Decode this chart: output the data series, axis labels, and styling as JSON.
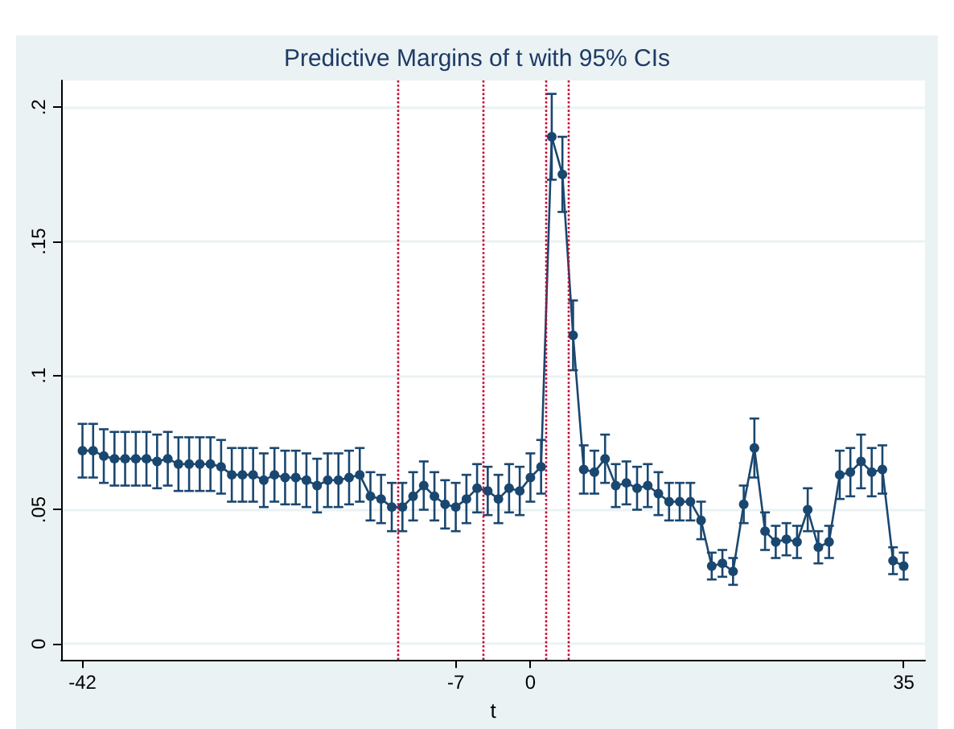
{
  "chart_data": {
    "type": "line",
    "title": "Predictive Margins of t with 95% CIs",
    "xlabel": "t",
    "x": [
      -42,
      -41,
      -40,
      -39,
      -38,
      -37,
      -36,
      -35,
      -34,
      -33,
      -32,
      -31,
      -30,
      -29,
      -28,
      -27,
      -26,
      -25,
      -24,
      -23,
      -22,
      -21,
      -20,
      -19,
      -18,
      -17,
      -16,
      -15,
      -14,
      -13,
      -12,
      -11,
      -10,
      -9,
      -8,
      -7,
      -6,
      -5,
      -4,
      -3,
      -2,
      -1,
      0,
      1,
      2,
      3,
      4,
      5,
      6,
      7,
      8,
      9,
      10,
      11,
      12,
      13,
      14,
      15,
      16,
      17,
      18,
      19,
      20,
      21,
      22,
      23,
      24,
      25,
      26,
      27,
      28,
      29,
      30,
      31,
      32,
      33,
      34,
      35
    ],
    "series": [
      {
        "color": "#1a476f",
        "values": [
          0.072,
          0.072,
          0.07,
          0.069,
          0.069,
          0.069,
          0.069,
          0.068,
          0.069,
          0.067,
          0.067,
          0.067,
          0.067,
          0.066,
          0.063,
          0.063,
          0.063,
          0.061,
          0.063,
          0.062,
          0.062,
          0.061,
          0.059,
          0.061,
          0.061,
          0.062,
          0.063,
          0.055,
          0.054,
          0.051,
          0.051,
          0.055,
          0.059,
          0.055,
          0.052,
          0.051,
          0.054,
          0.058,
          0.057,
          0.054,
          0.058,
          0.057,
          0.062,
          0.066,
          0.189,
          0.175,
          0.115,
          0.065,
          0.064,
          0.069,
          0.059,
          0.06,
          0.058,
          0.059,
          0.056,
          0.053,
          0.053,
          0.053,
          0.046,
          0.029,
          0.03,
          0.027,
          0.052,
          0.073,
          0.042,
          0.038,
          0.039,
          0.038,
          0.05,
          0.036,
          0.038,
          0.063,
          0.064,
          0.068,
          0.064,
          0.065,
          0.031,
          0.029
        ],
        "errors": [
          0.01,
          0.01,
          0.01,
          0.01,
          0.01,
          0.01,
          0.01,
          0.01,
          0.01,
          0.01,
          0.01,
          0.01,
          0.01,
          0.01,
          0.01,
          0.01,
          0.01,
          0.01,
          0.01,
          0.01,
          0.01,
          0.01,
          0.01,
          0.01,
          0.01,
          0.01,
          0.01,
          0.009,
          0.009,
          0.009,
          0.009,
          0.009,
          0.009,
          0.009,
          0.009,
          0.009,
          0.009,
          0.009,
          0.009,
          0.009,
          0.009,
          0.009,
          0.009,
          0.01,
          0.016,
          0.014,
          0.013,
          0.009,
          0.008,
          0.009,
          0.008,
          0.008,
          0.008,
          0.008,
          0.008,
          0.007,
          0.007,
          0.007,
          0.007,
          0.005,
          0.005,
          0.005,
          0.007,
          0.011,
          0.007,
          0.006,
          0.006,
          0.006,
          0.008,
          0.006,
          0.006,
          0.009,
          0.009,
          0.01,
          0.009,
          0.009,
          0.005,
          0.005
        ]
      }
    ],
    "xlim": [
      -44,
      37
    ],
    "xticks": [
      -42,
      -7,
      0,
      35
    ],
    "ylim": [
      -0.006,
      0.21
    ],
    "yticks": [
      {
        "value": 0,
        "label": "0"
      },
      {
        "value": 0.05,
        "label": ".05"
      },
      {
        "value": 0.1,
        "label": ".1"
      },
      {
        "value": 0.15,
        "label": ".15"
      },
      {
        "value": 0.2,
        "label": ".2"
      }
    ],
    "ref_lines": [
      {
        "axis": "x",
        "value": -12.5,
        "color": "#c10534",
        "line_style": "dotted"
      },
      {
        "axis": "x",
        "value": -4.5,
        "color": "#c10534",
        "line_style": "dotted"
      },
      {
        "axis": "x",
        "value": 1.5,
        "color": "#c10534",
        "line_style": "dotted"
      },
      {
        "axis": "x",
        "value": 3.5,
        "color": "#c10534",
        "line_style": "dotted"
      }
    ],
    "grid": "y",
    "marker": "circle",
    "line_style": "solid"
  }
}
